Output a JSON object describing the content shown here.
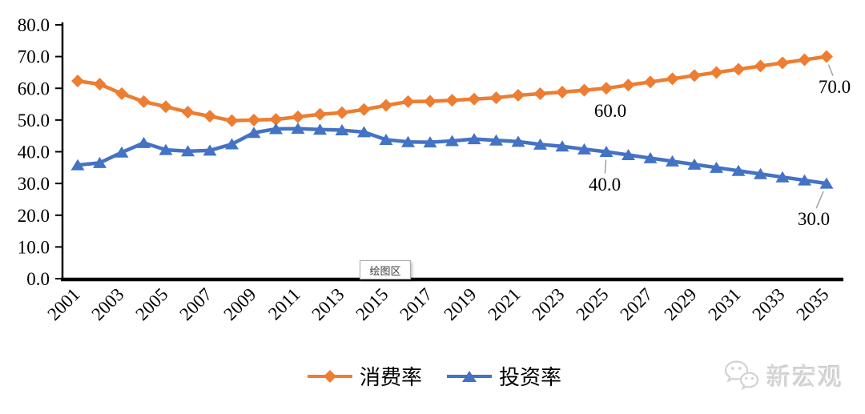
{
  "chart_data": {
    "type": "line",
    "title": "",
    "xlabel": "",
    "ylabel": "",
    "ylim": [
      0,
      80
    ],
    "grid": false,
    "legend_position": "bottom-center",
    "x_start": 2001,
    "x_end": 2035,
    "x_tick_labels": [
      "2001",
      "2003",
      "2005",
      "2007",
      "2009",
      "2011",
      "2013",
      "2015",
      "2017",
      "2019",
      "2021",
      "2023",
      "2025",
      "2027",
      "2029",
      "2031",
      "2033",
      "2035"
    ],
    "y_tick_labels": [
      "80.0",
      "70.0",
      "60.0",
      "50.0",
      "40.0",
      "30.0",
      "20.0",
      "10.0",
      "0.0"
    ],
    "series": [
      {
        "name": "消费率",
        "color": "#ED7D31",
        "marker": "diamond",
        "values": [
          62.3,
          61.3,
          58.3,
          55.8,
          54.2,
          52.5,
          51.2,
          49.8,
          50.0,
          50.2,
          51.0,
          51.8,
          52.3,
          53.3,
          54.6,
          55.8,
          55.9,
          56.2,
          56.6,
          57.0,
          57.8,
          58.3,
          58.8,
          59.4,
          60.0,
          61.0,
          62.0,
          63.0,
          64.0,
          65.0,
          66.0,
          67.0,
          68.0,
          69.0,
          70.0
        ]
      },
      {
        "name": "投资率",
        "color": "#4472C4",
        "marker": "triangle-up",
        "values": [
          35.8,
          36.5,
          39.8,
          42.8,
          40.6,
          40.2,
          40.4,
          42.4,
          46.0,
          47.2,
          47.3,
          47.0,
          46.8,
          46.2,
          43.8,
          43.1,
          43.0,
          43.4,
          44.0,
          43.6,
          43.2,
          42.3,
          41.7,
          40.8,
          40.0,
          39.0,
          38.0,
          37.0,
          36.0,
          35.0,
          34.0,
          33.0,
          32.0,
          31.0,
          30.0
        ]
      }
    ],
    "annotations": [
      {
        "text": "60.0",
        "series": 0,
        "year": 2025
      },
      {
        "text": "70.0",
        "series": 0,
        "year": 2035
      },
      {
        "text": "40.0",
        "series": 1,
        "year": 2025
      },
      {
        "text": "30.0",
        "series": 1,
        "year": 2035
      }
    ]
  },
  "legend": {
    "items": [
      {
        "label": "消费率"
      },
      {
        "label": "投资率"
      }
    ]
  },
  "tooltip": {
    "text": "绘图区"
  },
  "watermark": {
    "icon": "wechat-icon",
    "text": "新宏观"
  },
  "colors": {
    "consumption": "#ED7D31",
    "investment": "#4472C4",
    "axis": "#000000",
    "leader": "#A6A6A6",
    "watermark": "#D6D6D6"
  }
}
